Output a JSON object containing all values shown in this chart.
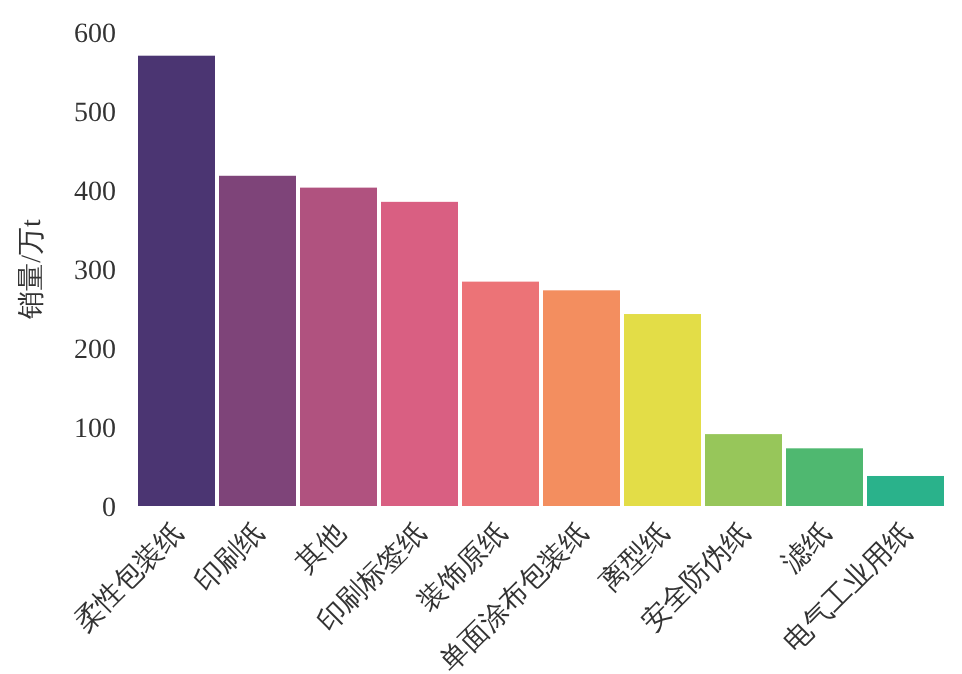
{
  "chart_data": {
    "type": "bar",
    "ylabel": "销量/万t",
    "categories": [
      "柔性包装纸",
      "印刷纸",
      "其他",
      "印刷标签纸",
      "装饰原纸",
      "单面涂布包装纸",
      "离型纸",
      "安全防伪纸",
      "滤纸",
      "电气工业用纸"
    ],
    "values": [
      570,
      418,
      403,
      385,
      284,
      273,
      243,
      91,
      73,
      38
    ],
    "colors": [
      "#4b3572",
      "#7e4479",
      "#b0527f",
      "#d95f82",
      "#ec7377",
      "#f38e5f",
      "#e3dd47",
      "#97c65a",
      "#4fb870",
      "#2ab28b"
    ],
    "ylim": [
      0,
      600
    ],
    "yticks": [
      0,
      100,
      200,
      300,
      400,
      500,
      600
    ]
  }
}
